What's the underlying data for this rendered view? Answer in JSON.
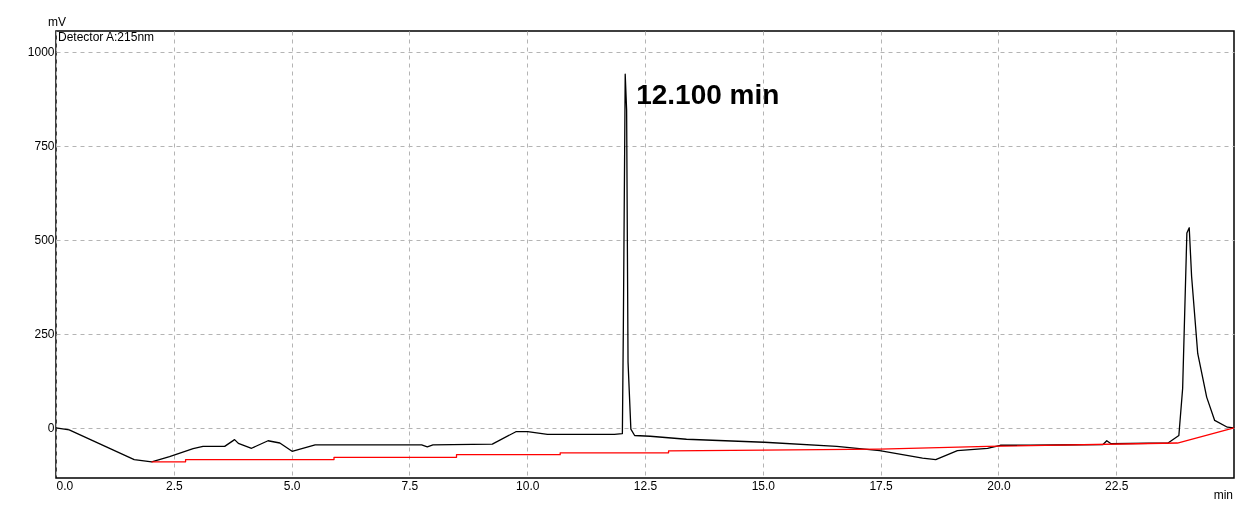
{
  "chart_data": {
    "type": "line",
    "xlabel": "min",
    "ylabel": "mV",
    "annotations": [
      "Detector A:215nm",
      {
        "text": "12.100 min",
        "x": 12.1,
        "y": 940
      }
    ],
    "xlim": [
      0,
      25
    ],
    "ylim": [
      -133,
      1055
    ],
    "xticks": [
      {
        "value": 0,
        "label": "0.0"
      },
      2.5,
      {
        "value": 5,
        "label": "5.0"
      },
      7.5,
      {
        "value": 10,
        "label": "10.0"
      },
      12.5,
      {
        "value": 15,
        "label": "15.0"
      },
      17.5,
      {
        "value": 20,
        "label": "20.0"
      },
      22.5
    ],
    "yticks": [
      0,
      250,
      500,
      750,
      1000
    ],
    "grid": true,
    "line_style": "solid",
    "marker": "none",
    "series": [
      {
        "color": "#000000",
        "x": [
          0,
          0.28,
          1.66,
          2.03,
          2.41,
          2.91,
          3.12,
          3.58,
          3.79,
          3.87,
          4.15,
          4.5,
          4.75,
          5.01,
          5.5,
          7.76,
          7.88,
          8.0,
          9.26,
          9.76,
          10.01,
          10.43,
          11.85,
          12.02,
          12.04,
          12.08,
          12.11,
          12.14,
          12.2,
          12.28,
          12.61,
          13.38,
          15.03,
          16.57,
          17.48,
          18.39,
          18.67,
          19.13,
          19.77,
          20.04,
          20.68,
          22.22,
          22.3,
          22.39,
          23.6,
          23.83,
          23.91,
          23.96,
          24.0,
          24.05,
          24.1,
          24.23,
          24.42,
          24.59,
          24.86,
          25.0
        ],
        "values": [
          0,
          -5,
          -84,
          -90,
          -76,
          -55,
          -49,
          -49,
          -31,
          -41,
          -54,
          -34,
          -40,
          -62,
          -45,
          -45,
          -50,
          -45,
          -43,
          -10,
          -10,
          -17,
          -17,
          -15,
          260,
          940,
          845,
          175,
          -3,
          -20,
          -22,
          -30,
          -38,
          -49,
          -60,
          -80,
          -84,
          -60,
          -54,
          -46,
          -46,
          -44,
          -34,
          -42,
          -40,
          -20,
          105,
          335,
          518,
          532,
          403,
          198,
          82,
          20,
          2,
          0
        ]
      },
      {
        "color": "#ff0000",
        "x": [
          2.03,
          2.75,
          2.75,
          5.9,
          5.9,
          8.5,
          8.5,
          10.7,
          10.7,
          13.0,
          13.0,
          17.48,
          19.77,
          23.8,
          25.0
        ],
        "values": [
          -90,
          -90,
          -84,
          -84,
          -78,
          -78,
          -71,
          -71,
          -66,
          -66,
          -61,
          -56,
          -49,
          -40,
          0
        ]
      }
    ]
  }
}
